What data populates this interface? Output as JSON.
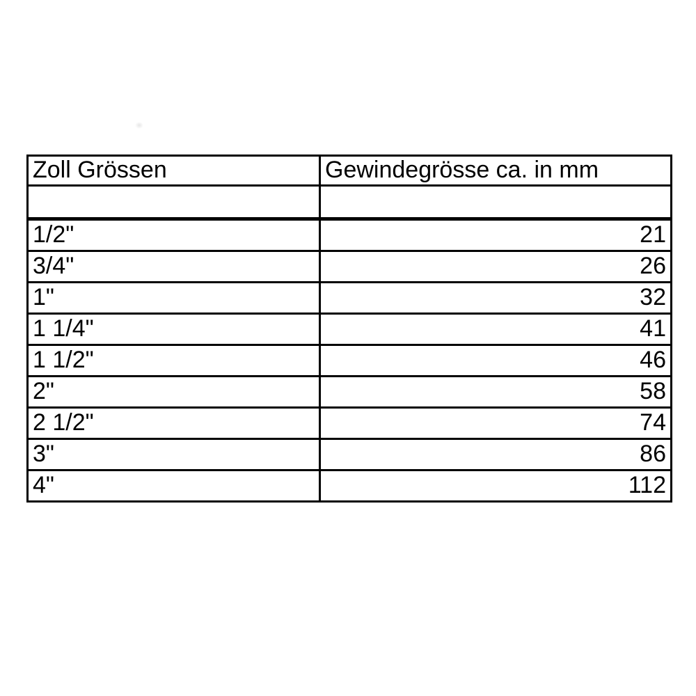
{
  "table": {
    "col1_header": "Zoll Grössen",
    "col2_header": "Gewindegrösse ca. in mm",
    "rows": [
      {
        "zoll": "1/2\"",
        "mm": "21"
      },
      {
        "zoll": "3/4\"",
        "mm": "26"
      },
      {
        "zoll": "1\"",
        "mm": "32"
      },
      {
        "zoll": "1 1/4\"",
        "mm": "41"
      },
      {
        "zoll": "1 1/2\"",
        "mm": "46"
      },
      {
        "zoll": "2\"",
        "mm": "58"
      },
      {
        "zoll": "2 1/2\"",
        "mm": "74"
      },
      {
        "zoll": "3\"",
        "mm": "86"
      },
      {
        "zoll": "4\"",
        "mm": "112"
      }
    ]
  },
  "colors": {
    "border": "#000000",
    "text": "#000000",
    "background": "#ffffff"
  }
}
